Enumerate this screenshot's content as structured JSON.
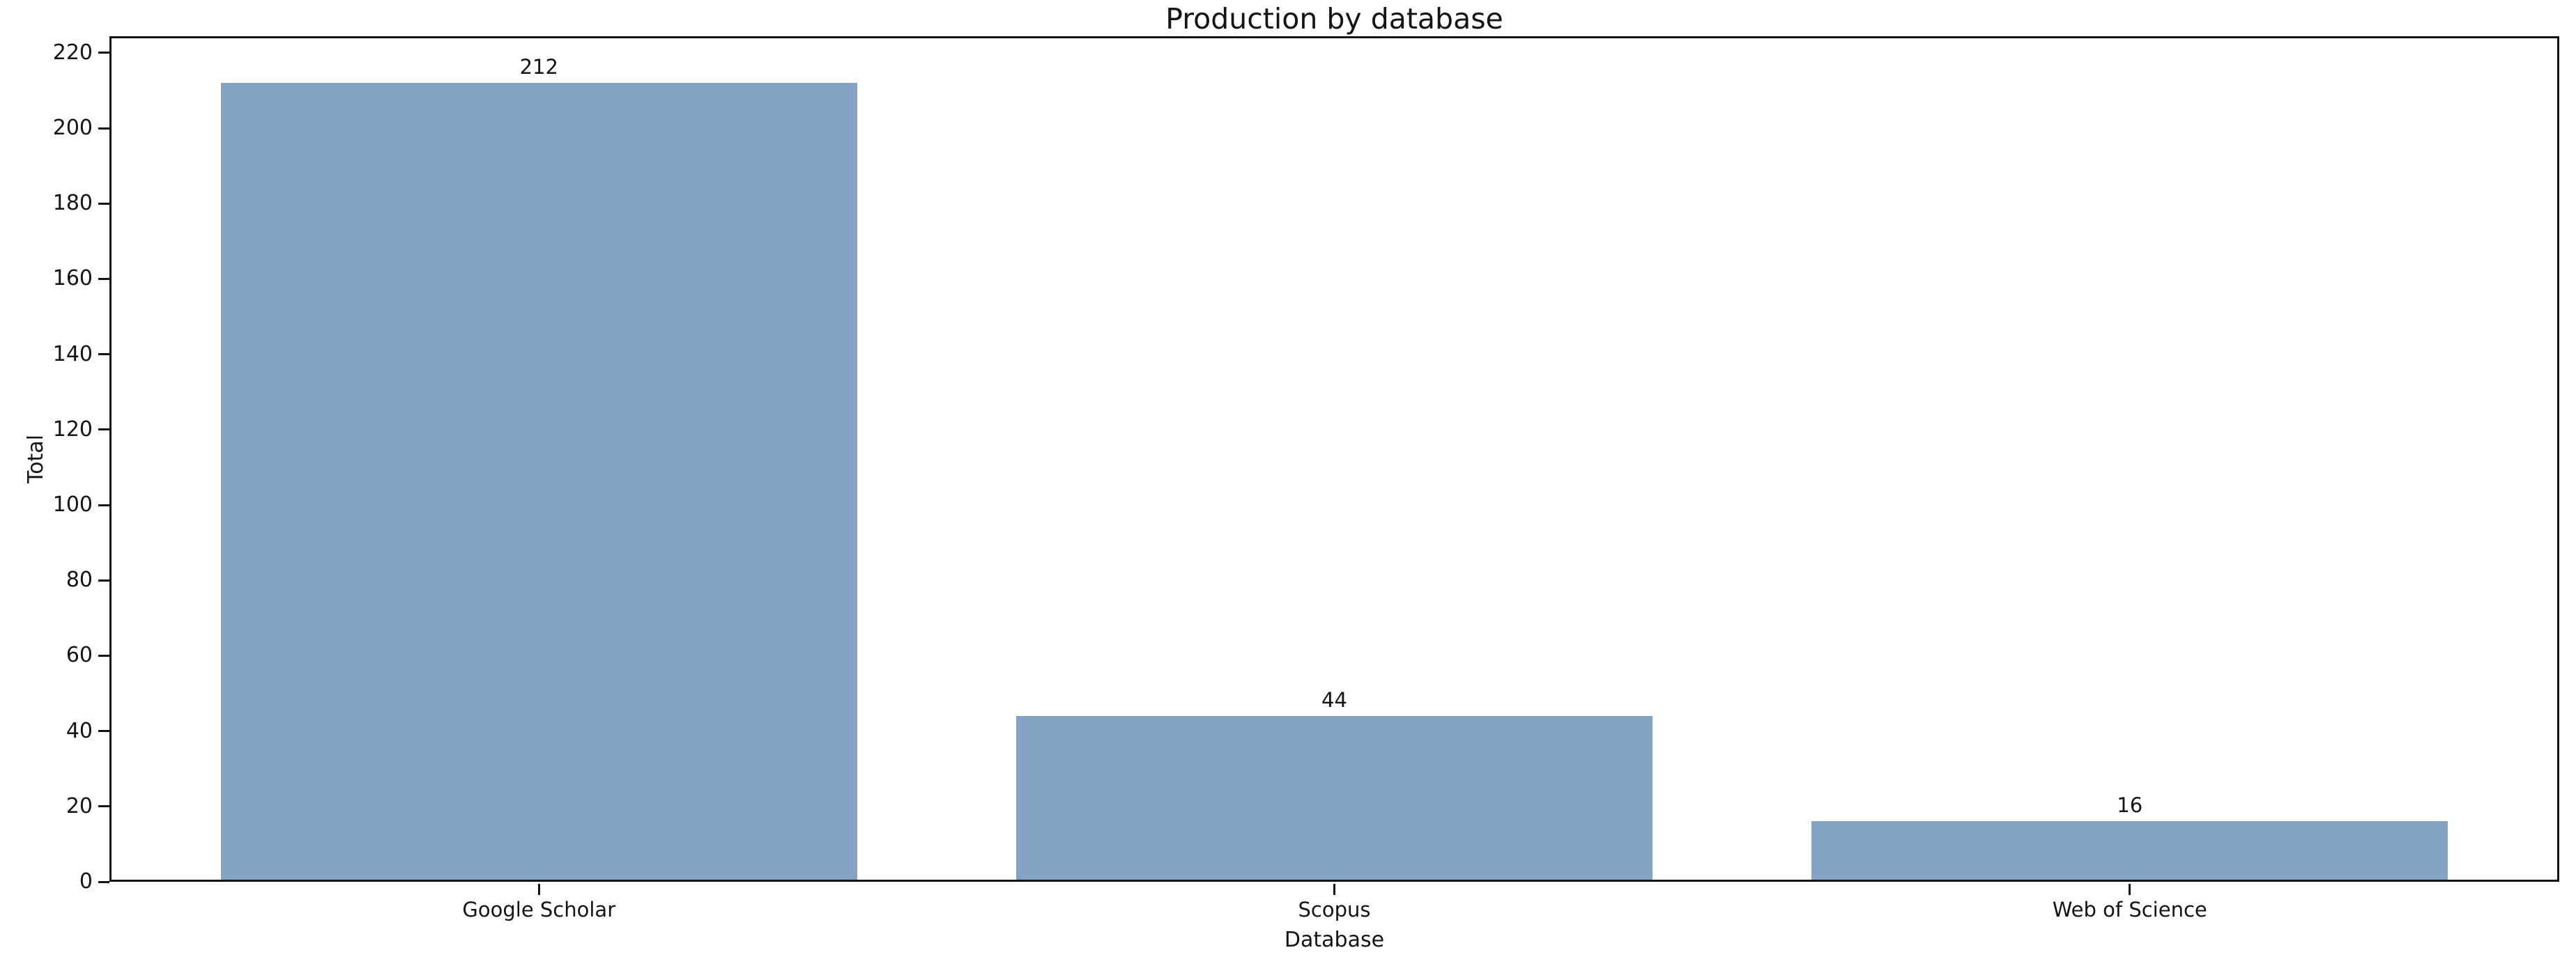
{
  "chart_data": {
    "type": "bar",
    "title": "Production by database",
    "xlabel": "Database",
    "ylabel": "Total",
    "categories": [
      "Google Scholar",
      "Scopus",
      "Web of Science"
    ],
    "values": [
      212,
      44,
      16
    ],
    "bar_labels": [
      "212",
      "44",
      "16"
    ],
    "yticks": [
      0,
      20,
      40,
      60,
      80,
      100,
      120,
      140,
      160,
      180,
      200,
      220
    ],
    "ylim": [
      0,
      224.4
    ],
    "grid": false,
    "legend": "none",
    "colors": {
      "bar": "#84a2c3",
      "text": "#141414",
      "spine": "#141414",
      "background": "#ffffff"
    }
  }
}
